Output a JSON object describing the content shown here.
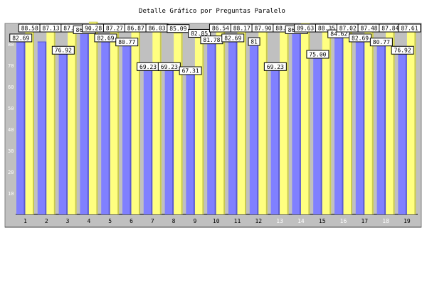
{
  "chart_data": {
    "type": "bar",
    "title": "Detalle Gráfico por Preguntas Paralelo",
    "xlabel": "",
    "ylabel": "",
    "ylim": [
      0,
      90
    ],
    "yticks": [
      10,
      20,
      30,
      40,
      50,
      60,
      70,
      80
    ],
    "grid": false,
    "legend": "none",
    "categories": [
      "1",
      "2",
      "3",
      "4",
      "5",
      "6",
      "7",
      "8",
      "9",
      "10",
      "11",
      "12",
      "13",
      "14",
      "15",
      "16",
      "17",
      "18",
      "19"
    ],
    "series": [
      {
        "values": [
          82.69,
          81.0,
          76.92,
          86.54,
          82.69,
          80.77,
          69.23,
          69.23,
          67.31,
          81.78,
          82.69,
          81.0,
          69.23,
          86.54,
          75.0,
          84.62,
          82.69,
          80.77,
          76.92
        ]
      },
      {
        "values": [
          88.58,
          87.13,
          87.14,
          90.28,
          87.27,
          86.87,
          86.03,
          85.09,
          82.85,
          86.54,
          88.17,
          87.9,
          88.72,
          89.63,
          88.35,
          87.02,
          87.48,
          87.84,
          87.61
        ]
      }
    ],
    "data_labels": [
      [
        "82.69",
        "",
        "76.92",
        "86.54",
        "82.69",
        "80.77",
        "69.23",
        "69.23",
        "67.31",
        "81.78",
        "82.69",
        "81",
        "69.23",
        "86.54",
        "75.00",
        "84.62",
        "82.69",
        "80.77",
        "76.92"
      ],
      [
        "88.58",
        "87.13",
        "87.14",
        "90.28",
        "87.27",
        "86.87",
        "86.03",
        "85.09",
        "82.85",
        "86.54",
        "88.17",
        "87.90",
        "88.72",
        "89.63",
        "88.35",
        "87.02",
        "87.48",
        "87.84",
        "87.61"
      ]
    ],
    "colors": {
      "series": [
        "#8080ff",
        "#ffff80"
      ],
      "series_dark": [
        "#5a5ad0",
        "#c8c850"
      ],
      "plot_background": "#c0c0c0",
      "label_background": "#ffffff",
      "light_xtick_categories": [
        "13",
        "14",
        "16",
        "18"
      ]
    }
  }
}
